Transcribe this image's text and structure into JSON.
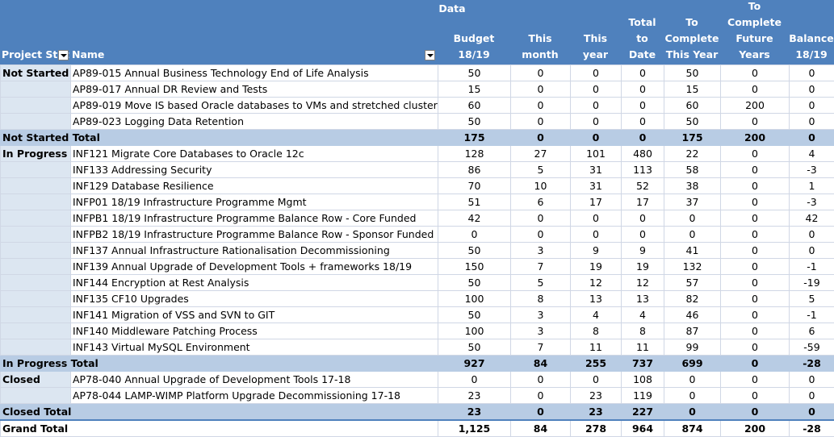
{
  "header": {
    "data_label": "Data",
    "col_status": "Project Stat",
    "col_name": "Name",
    "col_budget": "Budget 18/19",
    "col_month": "This month",
    "col_year": "This year",
    "col_total": [
      "Total to",
      "Date"
    ],
    "col_complete": [
      "To",
      "Complete",
      "This Year"
    ],
    "col_future": [
      "To Complete",
      "Future Years"
    ],
    "col_balance": [
      "Balance",
      "18/19"
    ]
  },
  "groups": [
    {
      "status": "Not Started",
      "rows": [
        {
          "name": "AP89-015 Annual Business Technology End of Life Analysis",
          "budget": "50",
          "month": "0",
          "year": "0",
          "total": "0",
          "complete": "50",
          "future": "0",
          "balance": "0"
        },
        {
          "name": "AP89-017 Annual DR Review and Tests",
          "budget": "15",
          "month": "0",
          "year": "0",
          "total": "0",
          "complete": "15",
          "future": "0",
          "balance": "0"
        },
        {
          "name": "AP89-019 Move IS based Oracle databases to VMs and stretched cluster",
          "budget": "60",
          "month": "0",
          "year": "0",
          "total": "0",
          "complete": "60",
          "future": "200",
          "balance": "0"
        },
        {
          "name": "AP89-023 Logging Data Retention",
          "budget": "50",
          "month": "0",
          "year": "0",
          "total": "0",
          "complete": "50",
          "future": "0",
          "balance": "0"
        }
      ],
      "total": {
        "label": "Not Started Total",
        "budget": "175",
        "month": "0",
        "year": "0",
        "total": "0",
        "complete": "175",
        "future": "200",
        "balance": "0"
      }
    },
    {
      "status": "In Progress",
      "rows": [
        {
          "name": "INF121 Migrate Core Databases to Oracle 12c",
          "budget": "128",
          "month": "27",
          "year": "101",
          "total": "480",
          "complete": "22",
          "future": "0",
          "balance": "4"
        },
        {
          "name": "INF133 Addressing Security",
          "budget": "86",
          "month": "5",
          "year": "31",
          "total": "113",
          "complete": "58",
          "future": "0",
          "balance": "-3"
        },
        {
          "name": "INF129 Database Resilience",
          "budget": "70",
          "month": "10",
          "year": "31",
          "total": "52",
          "complete": "38",
          "future": "0",
          "balance": "1"
        },
        {
          "name": "INFP01 18/19  Infrastructure Programme Mgmt",
          "budget": "51",
          "month": "6",
          "year": "17",
          "total": "17",
          "complete": "37",
          "future": "0",
          "balance": "-3"
        },
        {
          "name": "INFPB1 18/19 Infrastructure Programme Balance Row - Core Funded",
          "budget": "42",
          "month": "0",
          "year": "0",
          "total": "0",
          "complete": "0",
          "future": "0",
          "balance": "42"
        },
        {
          "name": "INFPB2 18/19 Infrastructure Programme Balance Row - Sponsor Funded",
          "budget": "0",
          "month": "0",
          "year": "0",
          "total": "0",
          "complete": "0",
          "future": "0",
          "balance": "0"
        },
        {
          "name": "INF137  Annual Infrastructure Rationalisation Decommissioning",
          "budget": "50",
          "month": "3",
          "year": "9",
          "total": "9",
          "complete": "41",
          "future": "0",
          "balance": "0"
        },
        {
          "name": "INF139 Annual Upgrade of Development Tools + frameworks 18/19",
          "budget": "150",
          "month": "7",
          "year": "19",
          "total": "19",
          "complete": "132",
          "future": "0",
          "balance": "-1"
        },
        {
          "name": "INF144 Encryption at Rest Analysis",
          "budget": "50",
          "month": "5",
          "year": "12",
          "total": "12",
          "complete": "57",
          "future": "0",
          "balance": "-19"
        },
        {
          "name": "INF135 CF10 Upgrades",
          "budget": "100",
          "month": "8",
          "year": "13",
          "total": "13",
          "complete": "82",
          "future": "0",
          "balance": "5"
        },
        {
          "name": "INF141 Migration of VSS and SVN to GIT",
          "budget": "50",
          "month": "3",
          "year": "4",
          "total": "4",
          "complete": "46",
          "future": "0",
          "balance": "-1"
        },
        {
          "name": "INF140 Middleware Patching Process",
          "budget": "100",
          "month": "3",
          "year": "8",
          "total": "8",
          "complete": "87",
          "future": "0",
          "balance": "6"
        },
        {
          "name": "INF143 Virtual MySQL Environment",
          "budget": "50",
          "month": "7",
          "year": "11",
          "total": "11",
          "complete": "99",
          "future": "0",
          "balance": "-59"
        }
      ],
      "total": {
        "label": "In Progress Total",
        "budget": "927",
        "month": "84",
        "year": "255",
        "total": "737",
        "complete": "699",
        "future": "0",
        "balance": "-28"
      }
    },
    {
      "status": "Closed",
      "rows": [
        {
          "name": "AP78-040 Annual Upgrade of Development Tools 17-18",
          "budget": "0",
          "month": "0",
          "year": "0",
          "total": "108",
          "complete": "0",
          "future": "0",
          "balance": "0"
        },
        {
          "name": "AP78-044 LAMP-WIMP Platform Upgrade Decommissioning 17-18",
          "budget": "23",
          "month": "0",
          "year": "23",
          "total": "119",
          "complete": "0",
          "future": "0",
          "balance": "0"
        }
      ],
      "total": {
        "label": "Closed Total",
        "budget": "23",
        "month": "0",
        "year": "23",
        "total": "227",
        "complete": "0",
        "future": "0",
        "balance": "0"
      }
    }
  ],
  "grand_total": {
    "label": "Grand Total",
    "budget": "1,125",
    "month": "84",
    "year": "278",
    "total": "964",
    "complete": "874",
    "future": "200",
    "balance": "-28"
  }
}
